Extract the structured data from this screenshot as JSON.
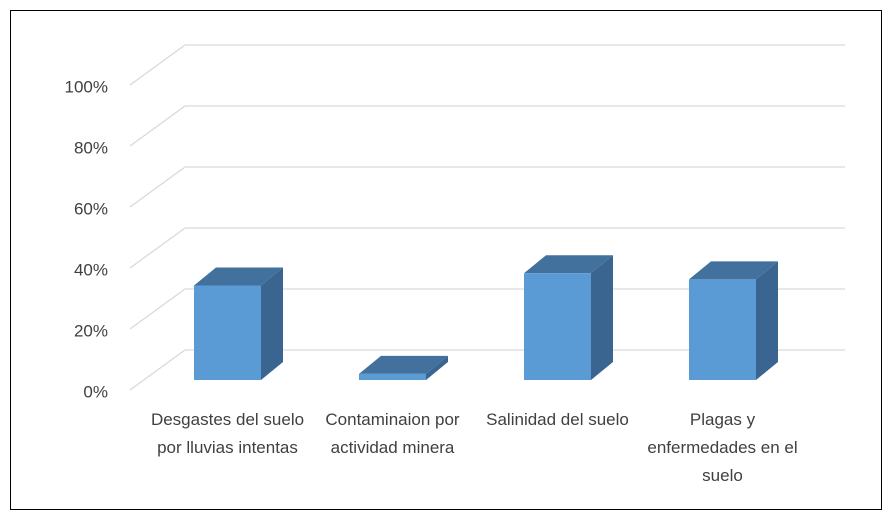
{
  "chart_data": {
    "type": "bar3d",
    "categories": [
      "Desgastes del suelo por lluvias intentas",
      "Contaminaion por actividad minera",
      "Salinidad del suelo",
      "Plagas y enfermedades en el suelo"
    ],
    "values": [
      31,
      2,
      35,
      33
    ],
    "color": "#5b9bd5",
    "ylim": [
      0,
      100
    ],
    "yticks": [
      {
        "value": 0,
        "label": "0%"
      },
      {
        "value": 20,
        "label": "20%"
      },
      {
        "value": 40,
        "label": "40%"
      },
      {
        "value": 60,
        "label": "60%"
      },
      {
        "value": 80,
        "label": "80%"
      },
      {
        "value": 100,
        "label": "100%"
      }
    ],
    "grid": true
  }
}
